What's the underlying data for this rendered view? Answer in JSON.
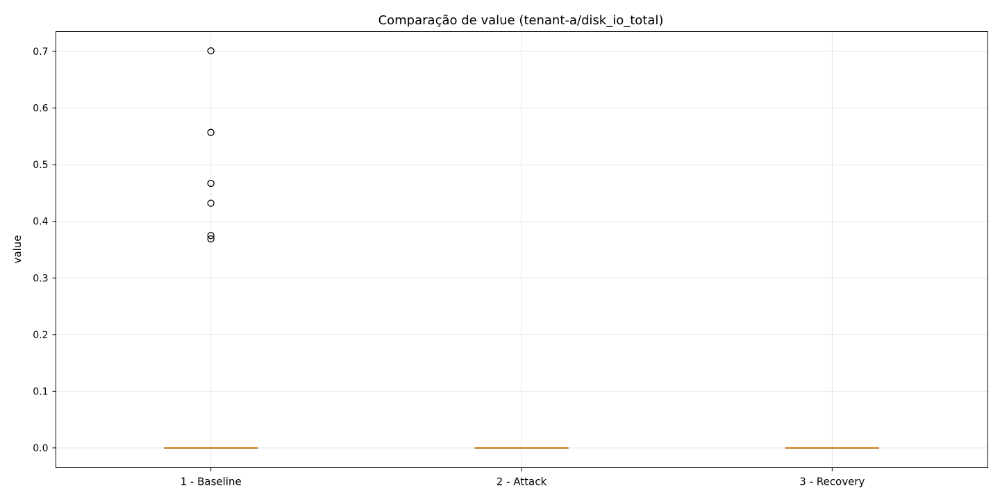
{
  "chart_data": {
    "type": "box",
    "title": "Comparação de value (tenant-a/disk_io_total)",
    "xlabel": "",
    "ylabel": "value",
    "ylim": [
      -0.035,
      0.735
    ],
    "yticks": [
      0.0,
      0.1,
      0.2,
      0.3,
      0.4,
      0.5,
      0.6,
      0.7
    ],
    "ytick_labels": [
      "0.0",
      "0.1",
      "0.2",
      "0.3",
      "0.4",
      "0.5",
      "0.6",
      "0.7"
    ],
    "grid": true,
    "categories": [
      "1 - Baseline",
      "2 - Attack",
      "3 - Recovery"
    ],
    "boxes": [
      {
        "category": "1 - Baseline",
        "q1": 0.0,
        "median": 0.0,
        "q3": 0.0,
        "whisker_low": 0.0,
        "whisker_high": 0.0,
        "outliers": [
          0.701,
          0.557,
          0.467,
          0.432,
          0.375,
          0.369
        ]
      },
      {
        "category": "2 - Attack",
        "q1": 0.0,
        "median": 0.0,
        "q3": 0.0,
        "whisker_low": 0.0,
        "whisker_high": 0.0,
        "outliers": []
      },
      {
        "category": "3 - Recovery",
        "q1": 0.0,
        "median": 0.0,
        "q3": 0.0,
        "whisker_low": 0.0,
        "whisker_high": 0.0,
        "outliers": []
      }
    ],
    "colors": {
      "median": "#e07b00",
      "box": "#000000",
      "outlier": "#000000",
      "grid": "#e6e6e6"
    }
  }
}
